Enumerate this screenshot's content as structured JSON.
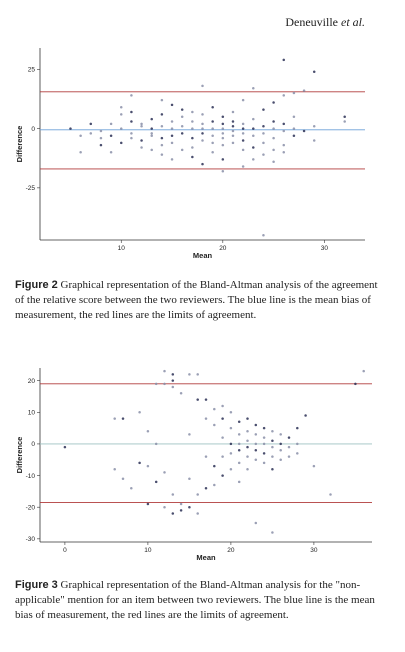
{
  "header": {
    "author": "Deneuville",
    "etal": "et al."
  },
  "figures": [
    {
      "label": "Figure 2",
      "caption": "Graphical representation of the Bland-Altman analysis of the agreement of the relative score between the two reviewers. The blue line is the mean bias of measurement, the red lines are the limits of agreement."
    },
    {
      "label": "Figure 3",
      "caption": "Graphical representation of the Bland-Altman analysis for the \"non-applicable\" mention for an item between two reviewers. The blue line is the mean bias of measurement, the red lines are the limits of agreement."
    }
  ],
  "chart_data": [
    {
      "type": "scatter",
      "title": "",
      "xlabel": "Mean",
      "ylabel": "Difference",
      "xlim": [
        2,
        34
      ],
      "ylim": [
        -47,
        34
      ],
      "xticks": [
        10,
        20,
        30
      ],
      "yticks": [
        25,
        0,
        -25
      ],
      "mean_bias": -0.5,
      "loa_upper": 15.5,
      "loa_lower": -17,
      "bias_color": "#6a9fd8",
      "loa_color": "#b03a3a",
      "grid": false,
      "points": [
        [
          5,
          0
        ],
        [
          6,
          -3
        ],
        [
          6,
          -10
        ],
        [
          7,
          2
        ],
        [
          7,
          -2
        ],
        [
          8,
          -1
        ],
        [
          8,
          -7
        ],
        [
          8,
          -4
        ],
        [
          9,
          2
        ],
        [
          9,
          -3
        ],
        [
          9,
          -10
        ],
        [
          10,
          0
        ],
        [
          10,
          -6
        ],
        [
          10,
          6
        ],
        [
          10,
          9
        ],
        [
          11,
          3
        ],
        [
          11,
          -2
        ],
        [
          11,
          -4
        ],
        [
          11,
          7
        ],
        [
          11,
          14
        ],
        [
          12,
          1
        ],
        [
          12,
          -5
        ],
        [
          12,
          -8
        ],
        [
          12,
          2
        ],
        [
          13,
          0
        ],
        [
          13,
          -3
        ],
        [
          13,
          -9
        ],
        [
          13,
          4
        ],
        [
          13,
          -2
        ],
        [
          14,
          1
        ],
        [
          14,
          -4
        ],
        [
          14,
          -7
        ],
        [
          14,
          -11
        ],
        [
          14,
          6
        ],
        [
          14,
          12
        ],
        [
          15,
          0
        ],
        [
          15,
          -3
        ],
        [
          15,
          -6
        ],
        [
          15,
          3
        ],
        [
          15,
          10
        ],
        [
          15,
          -13
        ],
        [
          16,
          1
        ],
        [
          16,
          -2
        ],
        [
          16,
          5
        ],
        [
          16,
          -9
        ],
        [
          16,
          8
        ],
        [
          17,
          0
        ],
        [
          17,
          3
        ],
        [
          17,
          -4
        ],
        [
          17,
          -8
        ],
        [
          17,
          7
        ],
        [
          17,
          -12
        ],
        [
          18,
          0
        ],
        [
          18,
          2
        ],
        [
          18,
          -2
        ],
        [
          18,
          -5
        ],
        [
          18,
          6
        ],
        [
          18,
          -15
        ],
        [
          18,
          18
        ],
        [
          19,
          0
        ],
        [
          19,
          3
        ],
        [
          19,
          -3
        ],
        [
          19,
          -6
        ],
        [
          19,
          9
        ],
        [
          19,
          -10
        ],
        [
          20,
          0
        ],
        [
          20,
          2
        ],
        [
          20,
          -2
        ],
        [
          20,
          -4
        ],
        [
          20,
          5
        ],
        [
          20,
          -7
        ],
        [
          20,
          -18
        ],
        [
          21,
          1
        ],
        [
          21,
          -1
        ],
        [
          21,
          -3
        ],
        [
          21,
          3
        ],
        [
          21,
          -6
        ],
        [
          21,
          7
        ],
        [
          22,
          0
        ],
        [
          22,
          -2
        ],
        [
          22,
          2
        ],
        [
          22,
          -5
        ],
        [
          22,
          -9
        ],
        [
          22,
          12
        ],
        [
          23,
          0
        ],
        [
          23,
          -3
        ],
        [
          23,
          4
        ],
        [
          23,
          -8
        ],
        [
          23,
          -13
        ],
        [
          23,
          17
        ],
        [
          24,
          1
        ],
        [
          24,
          -2
        ],
        [
          24,
          -6
        ],
        [
          24,
          8
        ],
        [
          24,
          -11
        ],
        [
          25,
          0
        ],
        [
          25,
          3
        ],
        [
          25,
          -4
        ],
        [
          25,
          -9
        ],
        [
          25,
          11
        ],
        [
          25,
          -14
        ],
        [
          26,
          -1
        ],
        [
          26,
          2
        ],
        [
          26,
          -7
        ],
        [
          26,
          14
        ],
        [
          26,
          29
        ],
        [
          26,
          -10
        ],
        [
          27,
          0
        ],
        [
          27,
          -3
        ],
        [
          27,
          5
        ],
        [
          27,
          15
        ],
        [
          28,
          -1
        ],
        [
          28,
          16
        ],
        [
          29,
          1
        ],
        [
          29,
          24
        ],
        [
          29,
          -5
        ],
        [
          32,
          3
        ],
        [
          32,
          5
        ],
        [
          24,
          -45
        ],
        [
          22,
          -16
        ],
        [
          20,
          -13
        ]
      ]
    },
    {
      "type": "scatter",
      "title": "",
      "xlabel": "Mean",
      "ylabel": "Difference",
      "xlim": [
        -3,
        37
      ],
      "ylim": [
        -31,
        24
      ],
      "xticks": [
        0,
        10,
        20,
        30
      ],
      "yticks": [
        20,
        10,
        0,
        -10,
        -20,
        -30
      ],
      "mean_bias": 0,
      "loa_upper": 19,
      "loa_lower": -18.5,
      "bias_color": "#9cc2c2",
      "loa_color": "#b03a3a",
      "grid": false,
      "points": [
        [
          0,
          -1
        ],
        [
          6,
          8
        ],
        [
          6,
          -8
        ],
        [
          7,
          8
        ],
        [
          7,
          -11
        ],
        [
          8,
          -14
        ],
        [
          9,
          -6
        ],
        [
          9,
          10
        ],
        [
          10,
          -7
        ],
        [
          10,
          -19
        ],
        [
          10,
          4
        ],
        [
          11,
          0
        ],
        [
          11,
          -12
        ],
        [
          12,
          -9
        ],
        [
          12,
          -20
        ],
        [
          13,
          -22
        ],
        [
          13,
          -16
        ],
        [
          13,
          18
        ],
        [
          14,
          -21
        ],
        [
          14,
          -19
        ],
        [
          14,
          16
        ],
        [
          15,
          -20
        ],
        [
          15,
          3
        ],
        [
          15,
          -11
        ],
        [
          16,
          14
        ],
        [
          16,
          -16
        ],
        [
          16,
          -22
        ],
        [
          17,
          14
        ],
        [
          17,
          8
        ],
        [
          17,
          -4
        ],
        [
          17,
          -14
        ],
        [
          18,
          11
        ],
        [
          18,
          6
        ],
        [
          18,
          -7
        ],
        [
          18,
          -13
        ],
        [
          19,
          12
        ],
        [
          19,
          8
        ],
        [
          19,
          2
        ],
        [
          19,
          -4
        ],
        [
          19,
          -10
        ],
        [
          20,
          10
        ],
        [
          20,
          5
        ],
        [
          20,
          0
        ],
        [
          20,
          -3
        ],
        [
          20,
          -8
        ],
        [
          21,
          7
        ],
        [
          21,
          3
        ],
        [
          21,
          0
        ],
        [
          21,
          -2
        ],
        [
          21,
          -6
        ],
        [
          21,
          -12
        ],
        [
          22,
          8
        ],
        [
          22,
          4
        ],
        [
          22,
          1
        ],
        [
          22,
          -1
        ],
        [
          22,
          -4
        ],
        [
          22,
          -8
        ],
        [
          23,
          6
        ],
        [
          23,
          3
        ],
        [
          23,
          0
        ],
        [
          23,
          -2
        ],
        [
          23,
          -5
        ],
        [
          23,
          -25
        ],
        [
          24,
          5
        ],
        [
          24,
          2
        ],
        [
          24,
          0
        ],
        [
          24,
          -3
        ],
        [
          24,
          -6
        ],
        [
          25,
          4
        ],
        [
          25,
          1
        ],
        [
          25,
          -1
        ],
        [
          25,
          -4
        ],
        [
          25,
          -8
        ],
        [
          25,
          -28
        ],
        [
          26,
          3
        ],
        [
          26,
          0
        ],
        [
          26,
          -2
        ],
        [
          26,
          -5
        ],
        [
          27,
          2
        ],
        [
          27,
          -1
        ],
        [
          27,
          -4
        ],
        [
          28,
          5
        ],
        [
          28,
          0
        ],
        [
          28,
          -3
        ],
        [
          29,
          9
        ],
        [
          30,
          -7
        ],
        [
          32,
          -16
        ],
        [
          35,
          19
        ],
        [
          36,
          23
        ],
        [
          12,
          23
        ],
        [
          13,
          22
        ],
        [
          15,
          22
        ],
        [
          16,
          22
        ],
        [
          13,
          20
        ],
        [
          12,
          19
        ],
        [
          11,
          19
        ]
      ]
    }
  ]
}
